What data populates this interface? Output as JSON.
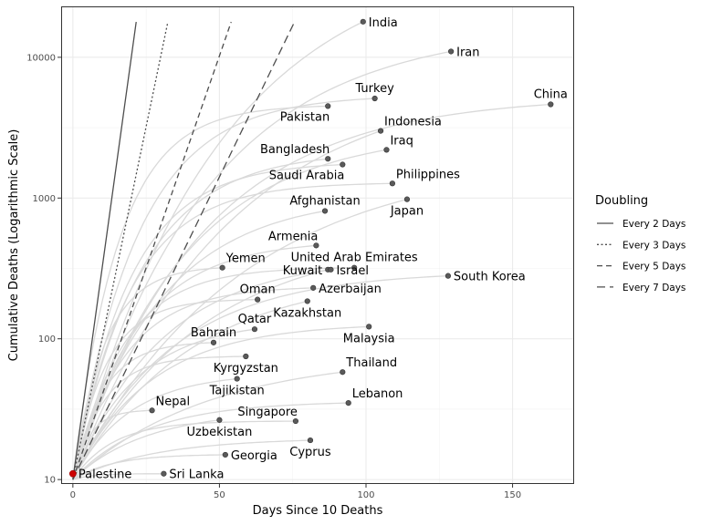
{
  "chart_data": {
    "type": "line",
    "title": "",
    "xlabel": "Days Since 10 Deaths",
    "ylabel": "Cumulative Deaths (Logarithmic Scale)",
    "y_scale": "log10",
    "xlim": [
      -4,
      171
    ],
    "ylim": [
      9.3,
      23000
    ],
    "x_ticks": [
      0,
      50,
      100,
      150
    ],
    "y_ticks": [
      10,
      100,
      1000,
      10000
    ],
    "grid": true,
    "legend": {
      "title": "Doubling",
      "position": "right",
      "entries": [
        {
          "label": "Every 2 Days",
          "dash": "solid"
        },
        {
          "label": "Every 3 Days",
          "dash": "dotted"
        },
        {
          "label": "Every 5 Days",
          "dash": "dashed"
        },
        {
          "label": "Every 7 Days",
          "dash": "longdash"
        }
      ]
    },
    "doubling_lines": [
      {
        "name": "Every 2 Days",
        "days": 2,
        "x_end": 21.6,
        "dash": "solid"
      },
      {
        "name": "Every 3 Days",
        "days": 3,
        "x_end": 32.4,
        "dash": "dotted"
      },
      {
        "name": "Every 5 Days",
        "days": 5,
        "x_end": 54,
        "dash": "dashed"
      },
      {
        "name": "Every 7 Days",
        "days": 7,
        "x_end": 75.6,
        "dash": "longdash"
      }
    ],
    "series_color": "#d9d9d9",
    "endpoint_color": "#5a5a5a",
    "highlight_color": "#cc0000",
    "series": [
      {
        "name": "India",
        "x": 99,
        "y": 17900,
        "label_anchor": "right"
      },
      {
        "name": "Iran",
        "x": 129,
        "y": 11000,
        "label_anchor": "right"
      },
      {
        "name": "China",
        "x": 163,
        "y": 4630,
        "label_anchor": "above"
      },
      {
        "name": "Turkey",
        "x": 103,
        "y": 5100,
        "label_anchor": "above"
      },
      {
        "name": "Pakistan",
        "x": 87,
        "y": 4500,
        "label_anchor": "below-left"
      },
      {
        "name": "Indonesia",
        "x": 105,
        "y": 3000,
        "label_anchor": "above-right"
      },
      {
        "name": "Iraq",
        "x": 107,
        "y": 2200,
        "label_anchor": "above-right"
      },
      {
        "name": "Bangladesh",
        "x": 87,
        "y": 1900,
        "label_anchor": "above-left"
      },
      {
        "name": "Saudi Arabia",
        "x": 92,
        "y": 1730,
        "label_anchor": "below-left"
      },
      {
        "name": "Philippines",
        "x": 109,
        "y": 1270,
        "label_anchor": "above-right"
      },
      {
        "name": "Japan",
        "x": 114,
        "y": 980,
        "label_anchor": "below"
      },
      {
        "name": "Afghanistan",
        "x": 86,
        "y": 810,
        "label_anchor": "above"
      },
      {
        "name": "Armenia",
        "x": 83,
        "y": 460,
        "label_anchor": "above-left"
      },
      {
        "name": "Yemen",
        "x": 51,
        "y": 320,
        "label_anchor": "above-right"
      },
      {
        "name": "United Arab Emirates",
        "x": 96,
        "y": 320,
        "label_anchor": "above"
      },
      {
        "name": "Kuwait",
        "x": 87,
        "y": 310,
        "label_anchor": "left"
      },
      {
        "name": "Israel",
        "x": 88,
        "y": 310,
        "label_anchor": "right"
      },
      {
        "name": "South Korea",
        "x": 128,
        "y": 280,
        "label_anchor": "right"
      },
      {
        "name": "Azerbaijan",
        "x": 82,
        "y": 230,
        "label_anchor": "right"
      },
      {
        "name": "Oman",
        "x": 63,
        "y": 190,
        "label_anchor": "above"
      },
      {
        "name": "Kazakhstan",
        "x": 80,
        "y": 185,
        "label_anchor": "below"
      },
      {
        "name": "Qatar",
        "x": 62,
        "y": 117,
        "label_anchor": "above"
      },
      {
        "name": "Malaysia",
        "x": 101,
        "y": 122,
        "label_anchor": "below"
      },
      {
        "name": "Bahrain",
        "x": 48,
        "y": 94,
        "label_anchor": "above"
      },
      {
        "name": "Kyrgyzstan",
        "x": 59,
        "y": 75,
        "label_anchor": "below"
      },
      {
        "name": "Thailand",
        "x": 92,
        "y": 58,
        "label_anchor": "above-right"
      },
      {
        "name": "Tajikistan",
        "x": 56,
        "y": 52,
        "label_anchor": "below"
      },
      {
        "name": "Lebanon",
        "x": 94,
        "y": 35,
        "label_anchor": "above-right"
      },
      {
        "name": "Nepal",
        "x": 27,
        "y": 31,
        "label_anchor": "above-right"
      },
      {
        "name": "Singapore",
        "x": 76,
        "y": 26,
        "label_anchor": "above-left"
      },
      {
        "name": "Uzbekistan",
        "x": 50,
        "y": 26.5,
        "label_anchor": "below"
      },
      {
        "name": "Cyprus",
        "x": 81,
        "y": 19,
        "label_anchor": "below"
      },
      {
        "name": "Georgia",
        "x": 52,
        "y": 15,
        "label_anchor": "right"
      },
      {
        "name": "Sri Lanka",
        "x": 31,
        "y": 11,
        "label_anchor": "right"
      },
      {
        "name": "Palestine",
        "x": 0,
        "y": 11,
        "label_anchor": "right",
        "highlight": true
      }
    ]
  }
}
